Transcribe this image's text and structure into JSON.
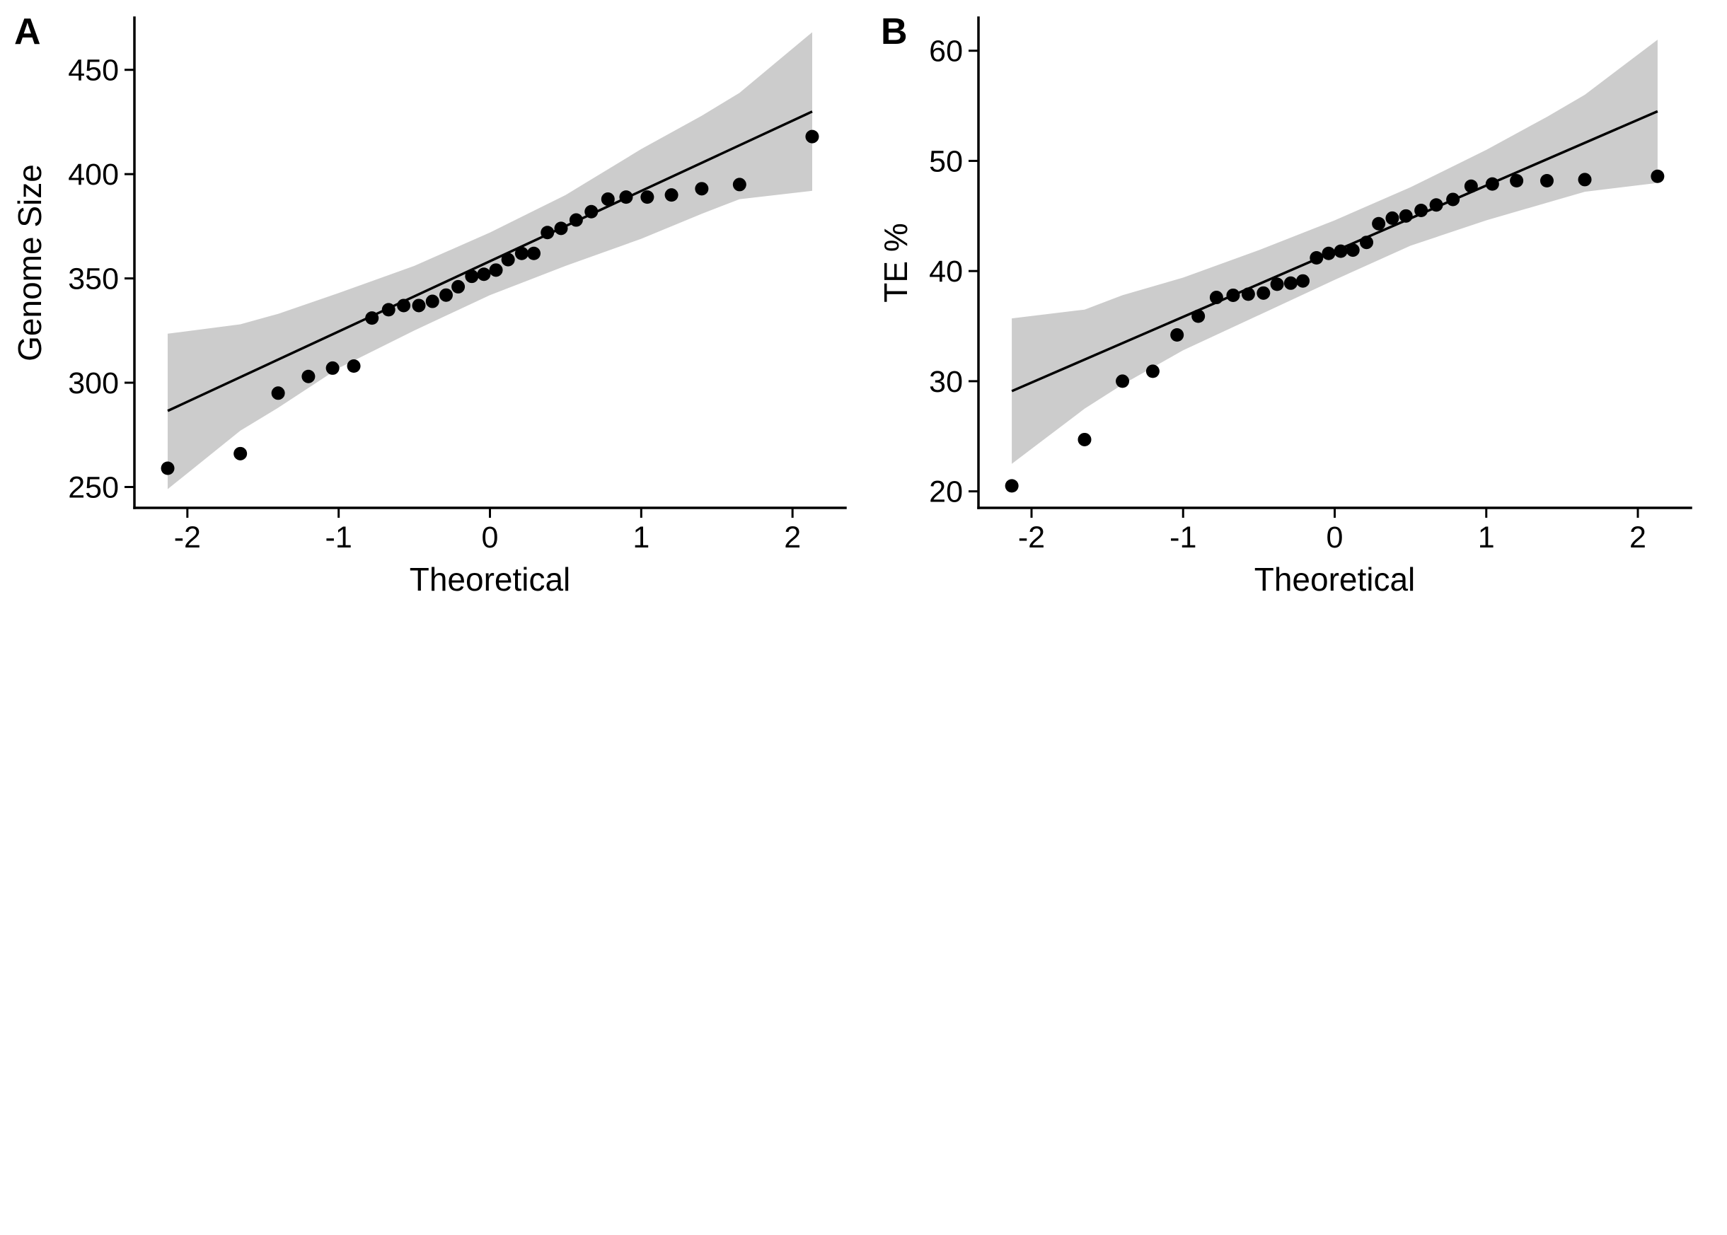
{
  "chart_data": [
    {
      "type": "scatter",
      "panel_label": "A",
      "xlabel": "Theoretical",
      "ylabel": "Genome Size",
      "xlim": [
        -2.35,
        2.35
      ],
      "ylim": [
        240,
        475
      ],
      "xticks": [
        -2,
        -1,
        0,
        1,
        2
      ],
      "xtick_labels": [
        "-2",
        "-1",
        "0",
        "1",
        "2"
      ],
      "yticks": [
        250,
        300,
        350,
        400,
        450
      ],
      "ytick_labels": [
        "250",
        "300",
        "350",
        "400",
        "450"
      ],
      "grid": false,
      "reference_line": {
        "x": [
          -2.13,
          2.13
        ],
        "y": [
          286.5,
          430
        ]
      },
      "confidence_band": {
        "x": [
          -2.13,
          -1.65,
          -1.4,
          -1.0,
          -0.5,
          0.0,
          0.5,
          1.0,
          1.4,
          1.65,
          2.13
        ],
        "upper": [
          323.5,
          328,
          333,
          343,
          356,
          372,
          390,
          412,
          428,
          439,
          468
        ],
        "lower": [
          249,
          277,
          288,
          307,
          325,
          342,
          356,
          369,
          381,
          388,
          392
        ]
      },
      "points": {
        "x": [
          -2.13,
          -1.65,
          -1.4,
          -1.2,
          -1.04,
          -0.9,
          -0.78,
          -0.67,
          -0.57,
          -0.47,
          -0.38,
          -0.29,
          -0.21,
          -0.12,
          -0.04,
          0.04,
          0.12,
          0.21,
          0.29,
          0.38,
          0.47,
          0.57,
          0.67,
          0.78,
          0.9,
          1.04,
          1.2,
          1.4,
          1.65,
          2.13
        ],
        "y": [
          259,
          266,
          295,
          303,
          307,
          308,
          331,
          335,
          337,
          337,
          339,
          342,
          346,
          351,
          352,
          354,
          359,
          362,
          362,
          372,
          374,
          378,
          382,
          388,
          389,
          389,
          390,
          393,
          395,
          418
        ]
      }
    },
    {
      "type": "scatter",
      "panel_label": "B",
      "xlabel": "Theoretical",
      "ylabel": "TE %",
      "xlim": [
        -2.35,
        2.35
      ],
      "ylim": [
        18.5,
        63
      ],
      "xticks": [
        -2,
        -1,
        0,
        1,
        2
      ],
      "xtick_labels": [
        "-2",
        "-1",
        "0",
        "1",
        "2"
      ],
      "yticks": [
        20,
        30,
        40,
        50,
        60
      ],
      "ytick_labels": [
        "20",
        "30",
        "40",
        "50",
        "60"
      ],
      "grid": false,
      "reference_line": {
        "x": [
          -2.13,
          2.13
        ],
        "y": [
          29.1,
          54.5
        ]
      },
      "confidence_band": {
        "x": [
          -2.13,
          -1.65,
          -1.4,
          -1.0,
          -0.5,
          0.0,
          0.5,
          1.0,
          1.4,
          1.65,
          2.13
        ],
        "upper": [
          35.7,
          36.5,
          37.8,
          39.4,
          41.9,
          44.6,
          47.6,
          51.0,
          54.0,
          56.0,
          61.0
        ],
        "lower": [
          22.5,
          27.5,
          29.7,
          32.8,
          36.0,
          39.2,
          42.3,
          44.6,
          46.2,
          47.2,
          48.0
        ]
      },
      "points": {
        "x": [
          -2.13,
          -1.65,
          -1.4,
          -1.2,
          -1.04,
          -0.9,
          -0.78,
          -0.67,
          -0.57,
          -0.47,
          -0.38,
          -0.29,
          -0.21,
          -0.12,
          -0.04,
          0.04,
          0.12,
          0.21,
          0.29,
          0.38,
          0.47,
          0.57,
          0.67,
          0.78,
          0.9,
          1.04,
          1.2,
          1.4,
          1.65,
          2.13
        ],
        "y": [
          20.5,
          24.7,
          30.0,
          30.9,
          34.2,
          35.9,
          37.6,
          37.8,
          37.9,
          38.0,
          38.8,
          38.9,
          39.1,
          41.2,
          41.6,
          41.8,
          41.9,
          42.6,
          44.3,
          44.8,
          45.0,
          45.5,
          46.0,
          46.5,
          47.7,
          47.9,
          48.2,
          48.2,
          48.3,
          48.6
        ]
      }
    }
  ]
}
